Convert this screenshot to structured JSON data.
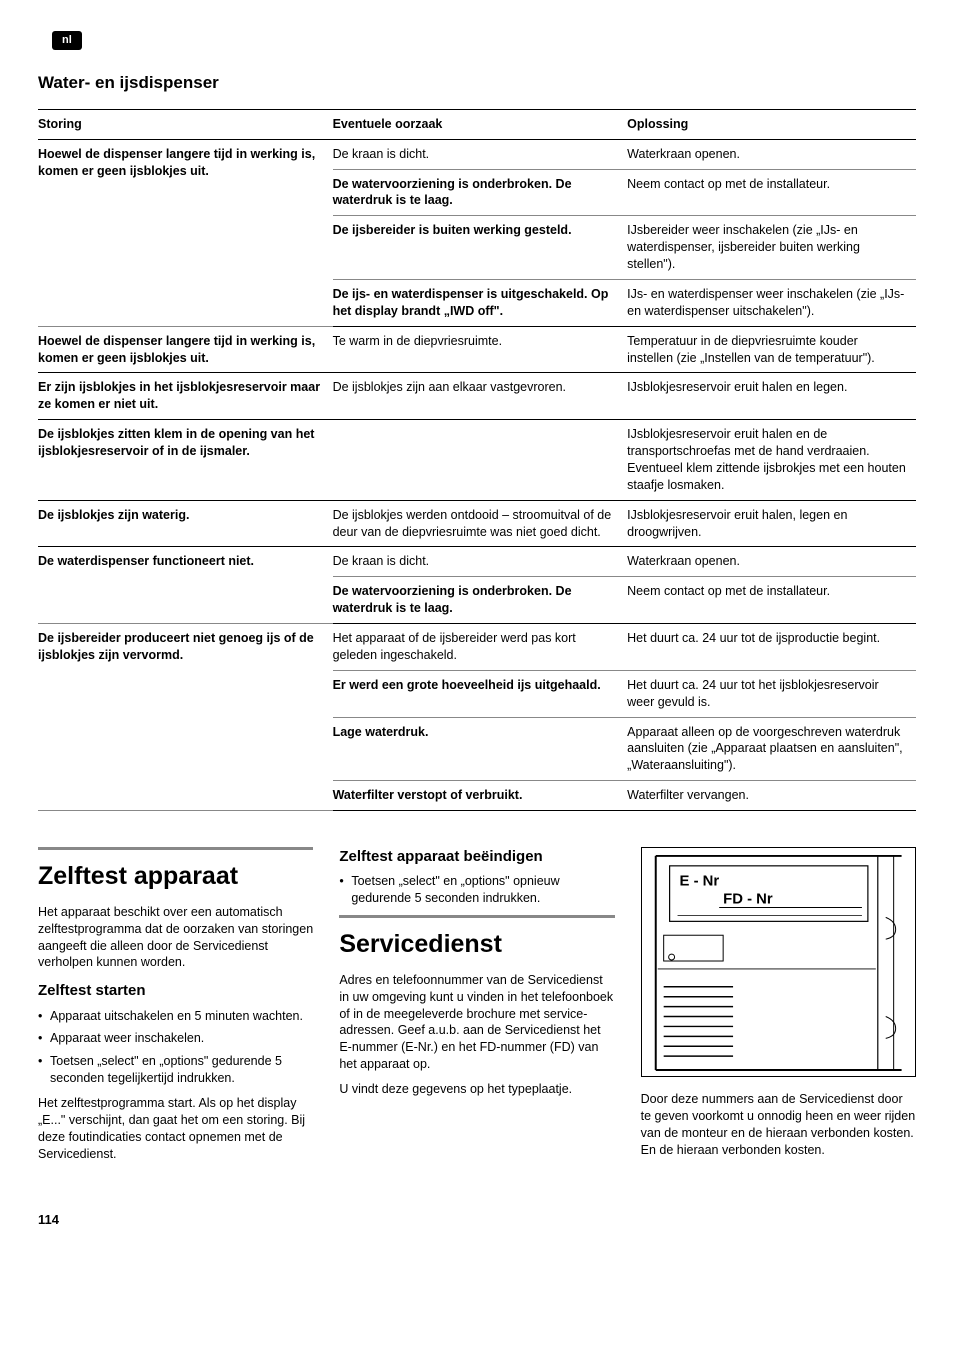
{
  "lang_tag": "nl",
  "section_title": "Water- en ijsdispenser",
  "table": {
    "headers": [
      "Storing",
      "Eventuele oorzaak",
      "Oplossing"
    ],
    "groups": [
      {
        "problem": "Hoewel de dispenser langere tijd in werking is, komen er geen ijsblokjes uit.",
        "rows": [
          {
            "cause": "De kraan is dicht.",
            "solution": "Waterkraan openen."
          },
          {
            "cause": "De watervoorziening is onderbroken. De waterdruk is te laag.",
            "solution": "Neem contact op met de installateur."
          },
          {
            "cause": "De ijsbereider is buiten werking gesteld.",
            "solution": "IJsbereider weer inschakelen (zie „IJs- en waterdispenser, ijsbereider buiten werking stellen\")."
          },
          {
            "cause": "De ijs- en waterdispenser is uitgeschakeld. Op het display brandt „IWD off\".",
            "solution": "IJs- en waterdispenser weer inschakelen (zie „IJs- en waterdispenser uitschakelen\")."
          }
        ]
      },
      {
        "problem": "Hoewel de dispenser langere tijd in werking is, komen er geen ijsblokjes uit.",
        "rows": [
          {
            "cause": "Te warm in de diepvriesruimte.",
            "solution": "Temperatuur in de diepvriesruimte kouder instellen (zie „Instellen van de temperatuur\")."
          }
        ]
      },
      {
        "problem": "Er zijn ijsblokjes in het ijsblokjesreservoir maar ze komen er niet uit.",
        "rows": [
          {
            "cause": "De ijsblokjes zijn aan elkaar vastgevroren.",
            "solution": "IJsblokjesreservoir eruit halen en legen."
          }
        ]
      },
      {
        "problem": "De ijsblokjes zitten klem in de opening van het ijsblokjesreservoir of in de ijsmaler.",
        "rows": [
          {
            "cause": "",
            "solution": "IJsblokjesreservoir eruit halen en de transportschroefas met de hand verdraaien. Eventueel klem zittende ijsbrokjes met een houten staafje losmaken."
          }
        ]
      },
      {
        "problem": "De ijsblokjes zijn waterig.",
        "rows": [
          {
            "cause": "De ijsblokjes werden ontdooid – stroomuitval of de deur van de diepvriesruimte was niet goed dicht.",
            "solution": "IJsblokjesreservoir eruit halen, legen en droogwrijven."
          }
        ]
      },
      {
        "problem": "De waterdispenser functioneert niet.",
        "rows": [
          {
            "cause": "De kraan is dicht.",
            "solution": "Waterkraan openen."
          },
          {
            "cause": "De watervoorziening is onderbroken. De waterdruk is te laag.",
            "solution": "Neem contact op met de installateur."
          }
        ]
      },
      {
        "problem": "De ijsbereider produceert niet genoeg ijs of de ijsblokjes zijn vervormd.",
        "rows": [
          {
            "cause": "Het apparaat of de ijsbereider werd pas kort geleden ingeschakeld.",
            "solution": "Het duurt ca. 24 uur tot de ijsproductie begint."
          },
          {
            "cause": "Er werd een grote hoeveelheid ijs uitgehaald.",
            "solution": "Het duurt ca. 24 uur tot het ijsblokjesreservoir weer gevuld is."
          },
          {
            "cause": "Lage waterdruk.",
            "solution": "Apparaat alleen op de voorgeschreven waterdruk aansluiten (zie „Apparaat plaatsen en aansluiten\", „Wateraansluiting\")."
          },
          {
            "cause": "Waterfilter verstopt of verbruikt.",
            "solution": "Waterfilter vervangen."
          }
        ]
      }
    ]
  },
  "col1": {
    "h1": "Zelftest apparaat",
    "intro": "Het apparaat beschikt over een automatisch zelftestprogramma dat de oorzaken van storingen aangeeft die alleen door de Servicedienst verholpen kunnen worden.",
    "h2_start": "Zelftest starten",
    "start_items": [
      "Apparaat uitschakelen en 5 minuten wachten.",
      "Apparaat weer inschakelen.",
      "Toetsen „select\" en „options\" gedurende 5 seconden tegelijkertijd indrukken."
    ],
    "after": "Het zelftestprogramma start. Als op het display „E...\" verschijnt, dan gaat het om een storing. Bij deze foutindicaties contact opnemen met de Servicedienst."
  },
  "col2": {
    "h2_end": "Zelftest apparaat beëindigen",
    "end_items": [
      "Toetsen „select\" en „options\" opnieuw gedurende 5 seconden indrukken."
    ],
    "h1": "Servicedienst",
    "p1": "Adres en telefoonnummer van de Servicedienst in uw omgeving kunt u vinden  in het telefoonboek of in de meegeleverde brochure met service-adressen. Geef a.u.b. aan de Servicedienst het E-nummer (E-Nr.) en het FD-nummer (FD) van het apparaat op.",
    "p2": "U vindt deze gegevens op het typeplaatje."
  },
  "col3": {
    "diagram_labels": {
      "e": "E - Nr",
      "fd": "FD - Nr"
    },
    "p": "Door deze nummers aan de Servicedienst door te geven voorkomt u onnodig heen en weer rijden van de monteur en de hieraan verbonden kosten. En de hieraan verbonden kosten."
  },
  "page_number": "114"
}
